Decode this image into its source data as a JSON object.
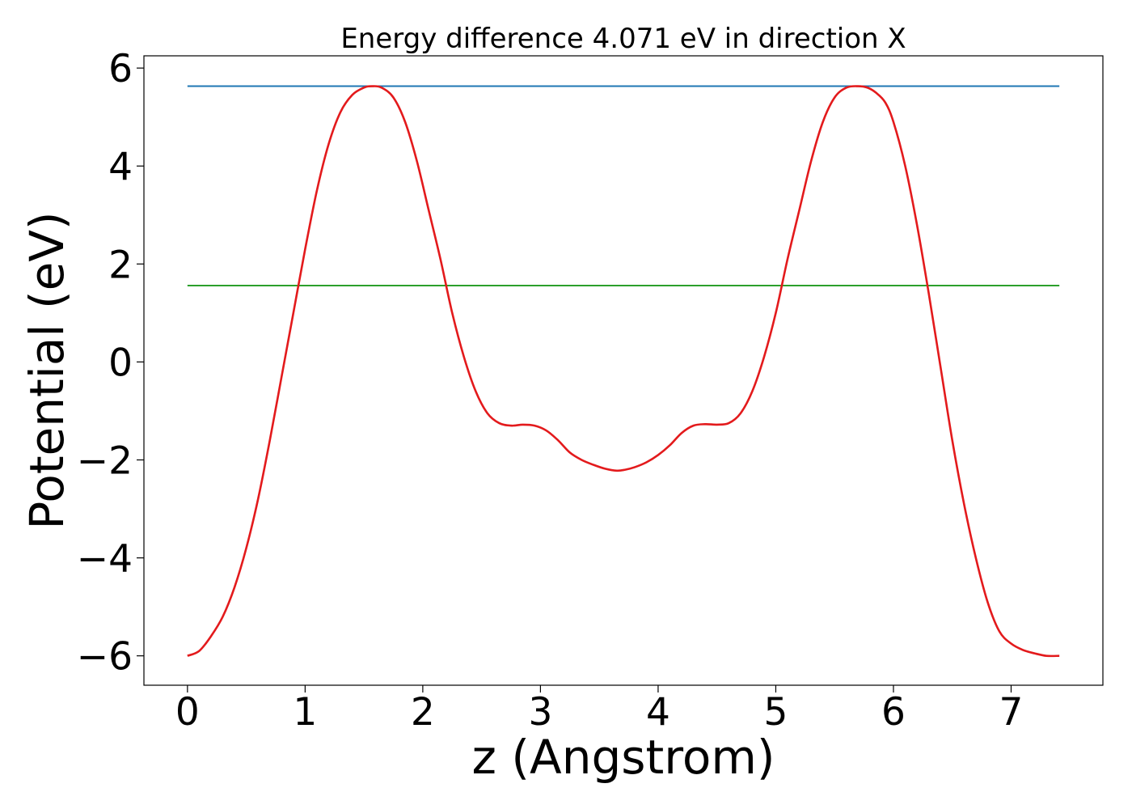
{
  "chart_data": {
    "type": "line",
    "title": "Energy difference 4.071 eV in direction X",
    "xlabel": "z (Angstrom)",
    "ylabel": "Potential (eV)",
    "xlim": [
      -0.37,
      7.78
    ],
    "ylim": [
      -6.6,
      6.25
    ],
    "xticks": [
      0,
      1,
      2,
      3,
      4,
      5,
      6,
      7
    ],
    "yticks": [
      -6,
      -4,
      -2,
      0,
      2,
      4,
      6
    ],
    "xtick_labels": [
      "0",
      "1",
      "2",
      "3",
      "4",
      "5",
      "6",
      "7"
    ],
    "ytick_labels": [
      "−6",
      "−4",
      "−2",
      "0",
      "2",
      "4",
      "6"
    ],
    "grid": false,
    "legend": "none",
    "series": [
      {
        "color": "#1f77b4",
        "x": [
          0,
          7.41
        ],
        "y": [
          5.63,
          5.63
        ]
      },
      {
        "color": "#2ca02c",
        "x": [
          0,
          7.41
        ],
        "y": [
          1.56,
          1.56
        ]
      },
      {
        "color": "#e31a1c",
        "x": [
          0,
          0.1,
          0.2,
          0.3,
          0.4,
          0.5,
          0.6,
          0.7,
          0.8,
          0.9,
          1.0,
          1.1,
          1.2,
          1.3,
          1.4,
          1.5,
          1.57,
          1.65,
          1.75,
          1.85,
          1.95,
          2.05,
          2.15,
          2.25,
          2.35,
          2.45,
          2.55,
          2.65,
          2.75,
          2.85,
          2.95,
          3.05,
          3.15,
          3.25,
          3.35,
          3.45,
          3.55,
          3.65,
          3.72,
          3.8,
          3.9,
          4.0,
          4.1,
          4.2,
          4.3,
          4.4,
          4.5,
          4.6,
          4.7,
          4.8,
          4.9,
          5.0,
          5.1,
          5.2,
          5.3,
          5.4,
          5.5,
          5.6,
          5.7,
          5.78,
          5.85,
          5.93,
          6.0,
          6.1,
          6.2,
          6.3,
          6.4,
          6.5,
          6.6,
          6.7,
          6.8,
          6.9,
          7.0,
          7.1,
          7.2,
          7.3,
          7.41
        ],
        "y": [
          -6.0,
          -5.9,
          -5.6,
          -5.2,
          -4.6,
          -3.8,
          -2.8,
          -1.6,
          -0.3,
          1.0,
          2.3,
          3.5,
          4.45,
          5.1,
          5.45,
          5.6,
          5.63,
          5.6,
          5.4,
          4.9,
          4.1,
          3.1,
          2.1,
          1.0,
          0.1,
          -0.6,
          -1.05,
          -1.25,
          -1.3,
          -1.28,
          -1.3,
          -1.4,
          -1.6,
          -1.85,
          -2.0,
          -2.1,
          -2.18,
          -2.22,
          -2.2,
          -2.15,
          -2.05,
          -1.9,
          -1.7,
          -1.45,
          -1.3,
          -1.27,
          -1.28,
          -1.25,
          -1.05,
          -0.6,
          0.1,
          1.0,
          2.1,
          3.1,
          4.1,
          4.9,
          5.4,
          5.6,
          5.63,
          5.6,
          5.5,
          5.3,
          4.9,
          4.0,
          2.8,
          1.4,
          -0.1,
          -1.6,
          -2.9,
          -4.0,
          -4.9,
          -5.5,
          -5.75,
          -5.88,
          -5.95,
          -6.0,
          -6.0
        ]
      }
    ]
  }
}
